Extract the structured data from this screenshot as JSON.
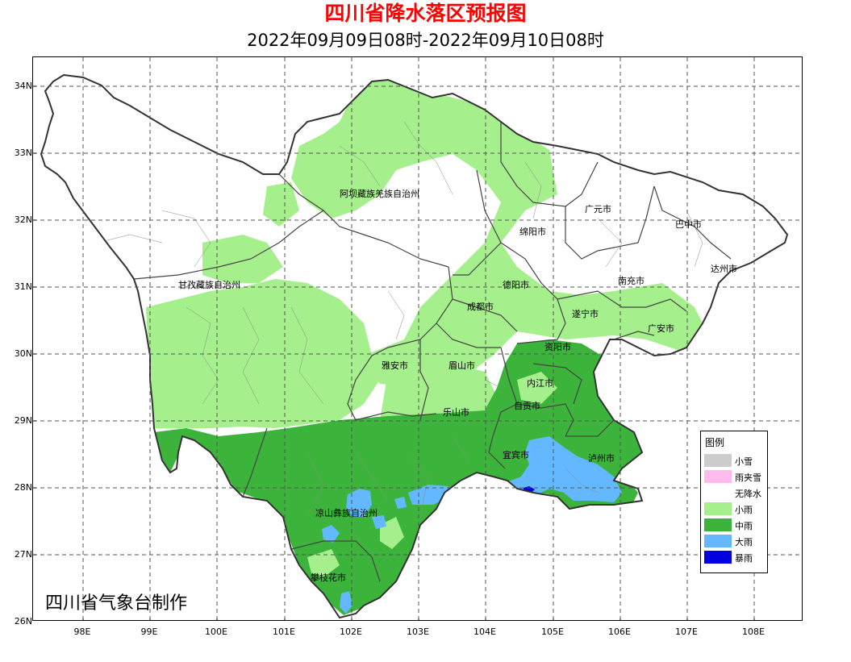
{
  "title": "四川省降水落区预报图",
  "subtitle": "2022年09月09日08时-2022年09月10日08时",
  "credit": "四川省气象台制作",
  "lat_ticks": [
    "34N",
    "33N",
    "32N",
    "31N",
    "30N",
    "29N",
    "28N",
    "27N",
    "26N"
  ],
  "lon_ticks": [
    "98E",
    "99E",
    "100E",
    "101E",
    "102E",
    "103E",
    "104E",
    "105E",
    "106E",
    "107E",
    "108E"
  ],
  "legend": {
    "title": "图例",
    "items": [
      {
        "label": "小雪",
        "color": "#cccccc"
      },
      {
        "label": "雨夹雪",
        "color": "#ffbbee"
      },
      {
        "label": "无降水",
        "color": "#ffffff"
      },
      {
        "label": "小雨",
        "color": "#a5ef8c"
      },
      {
        "label": "中雨",
        "color": "#3cb43c"
      },
      {
        "label": "大雨",
        "color": "#63b8ff"
      },
      {
        "label": "暴雨",
        "color": "#0000e0"
      }
    ]
  },
  "cities": [
    "阿坝藏族羌族自治州",
    "甘孜藏族自治州",
    "广元市",
    "巴中市",
    "绵阳市",
    "达州市",
    "德阳市",
    "南充市",
    "成都市",
    "遂宁市",
    "广安市",
    "资阳市",
    "雅安市",
    "眉山市",
    "内江市",
    "乐山市",
    "自贡市",
    "宜宾市",
    "泸州市",
    "凉山彝族自治州",
    "攀枝花市"
  ]
}
